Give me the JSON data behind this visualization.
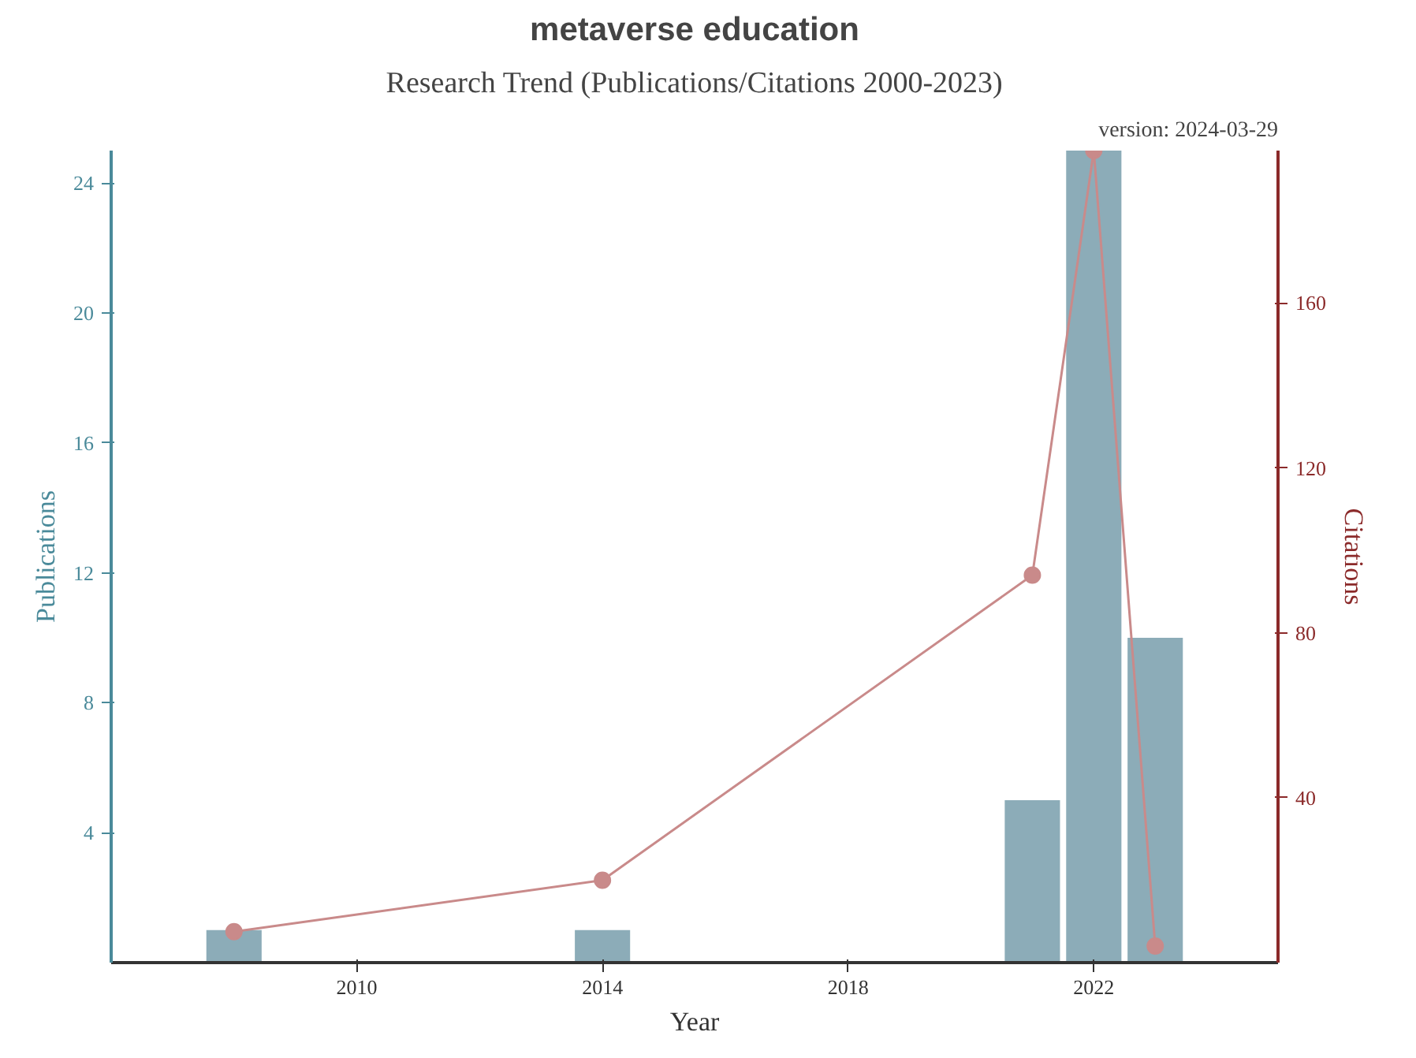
{
  "chart_data": {
    "type": "bar",
    "title": "metaverse education",
    "subtitle": "Research Trend (Publications/Citations 2000-2023)",
    "annotations": [
      "version: 2024-03-29"
    ],
    "xlabel": "Year",
    "ylabel": "Publications",
    "y2label": "Citations",
    "x": [
      2008,
      2014,
      2021,
      2022,
      2023
    ],
    "series": [
      {
        "color": "#7fa3b0",
        "values": [
          1,
          1,
          5,
          25,
          10
        ]
      },
      {
        "type": "line",
        "axis": "y2",
        "color": "#c98a8a",
        "values": [
          7.5,
          20,
          94,
          197,
          4
        ]
      }
    ],
    "xlim": [
      2006,
      2025
    ],
    "xticks": [
      2010,
      2014,
      2018,
      2022
    ],
    "ylim": [
      0,
      25
    ],
    "yticks": [
      4,
      8,
      12,
      16,
      20,
      24
    ],
    "y2lim": [
      0,
      197
    ],
    "y2ticks": [
      40,
      80,
      120,
      160
    ],
    "grid": false,
    "marker": "circle",
    "line_style": "solid"
  }
}
